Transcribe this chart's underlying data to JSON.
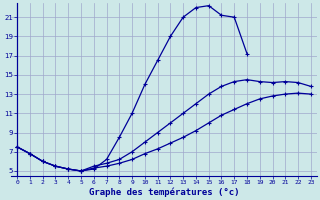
{
  "xlabel": "Graphe des températures (°c)",
  "background_color": "#cde8e8",
  "grid_color": "#a0a8cc",
  "line_color": "#000099",
  "xlim": [
    -0.5,
    23.5
  ],
  "ylim": [
    4.5,
    22.5
  ],
  "yticks": [
    5,
    7,
    9,
    11,
    13,
    15,
    17,
    19,
    21
  ],
  "xticks": [
    0,
    1,
    2,
    3,
    4,
    5,
    6,
    7,
    8,
    9,
    10,
    11,
    12,
    13,
    14,
    15,
    16,
    17,
    18,
    19,
    20,
    21,
    22,
    23
  ],
  "curve1_x": [
    0,
    1,
    2,
    3,
    4,
    5,
    6,
    7,
    8,
    9,
    10,
    11,
    12,
    13,
    14,
    15,
    16,
    17,
    18
  ],
  "curve1_y": [
    7.5,
    6.8,
    6.0,
    5.5,
    5.2,
    5.0,
    5.2,
    6.2,
    8.5,
    11.0,
    14.0,
    16.5,
    19.0,
    21.0,
    22.0,
    22.2,
    21.2,
    21.0,
    17.2
  ],
  "curve2_x": [
    0,
    1,
    2,
    3,
    4,
    5,
    6,
    7,
    8,
    9,
    10,
    11,
    12,
    13,
    14,
    15,
    16,
    17,
    18,
    19,
    20,
    21,
    22,
    23
  ],
  "curve2_y": [
    7.5,
    6.8,
    6.0,
    5.5,
    5.2,
    5.0,
    5.5,
    5.8,
    6.2,
    7.0,
    8.0,
    9.0,
    10.0,
    11.0,
    12.0,
    13.0,
    13.8,
    14.3,
    14.5,
    14.3,
    14.2,
    14.3,
    14.2,
    13.8
  ],
  "curve3_x": [
    0,
    1,
    2,
    3,
    4,
    5,
    6,
    7,
    8,
    9,
    10,
    11,
    12,
    13,
    14,
    15,
    16,
    17,
    18,
    19,
    20,
    21,
    22,
    23
  ],
  "curve3_y": [
    7.5,
    6.8,
    6.0,
    5.5,
    5.2,
    5.0,
    5.3,
    5.5,
    5.8,
    6.2,
    6.8,
    7.3,
    7.9,
    8.5,
    9.2,
    10.0,
    10.8,
    11.4,
    12.0,
    12.5,
    12.8,
    13.0,
    13.1,
    13.0
  ]
}
